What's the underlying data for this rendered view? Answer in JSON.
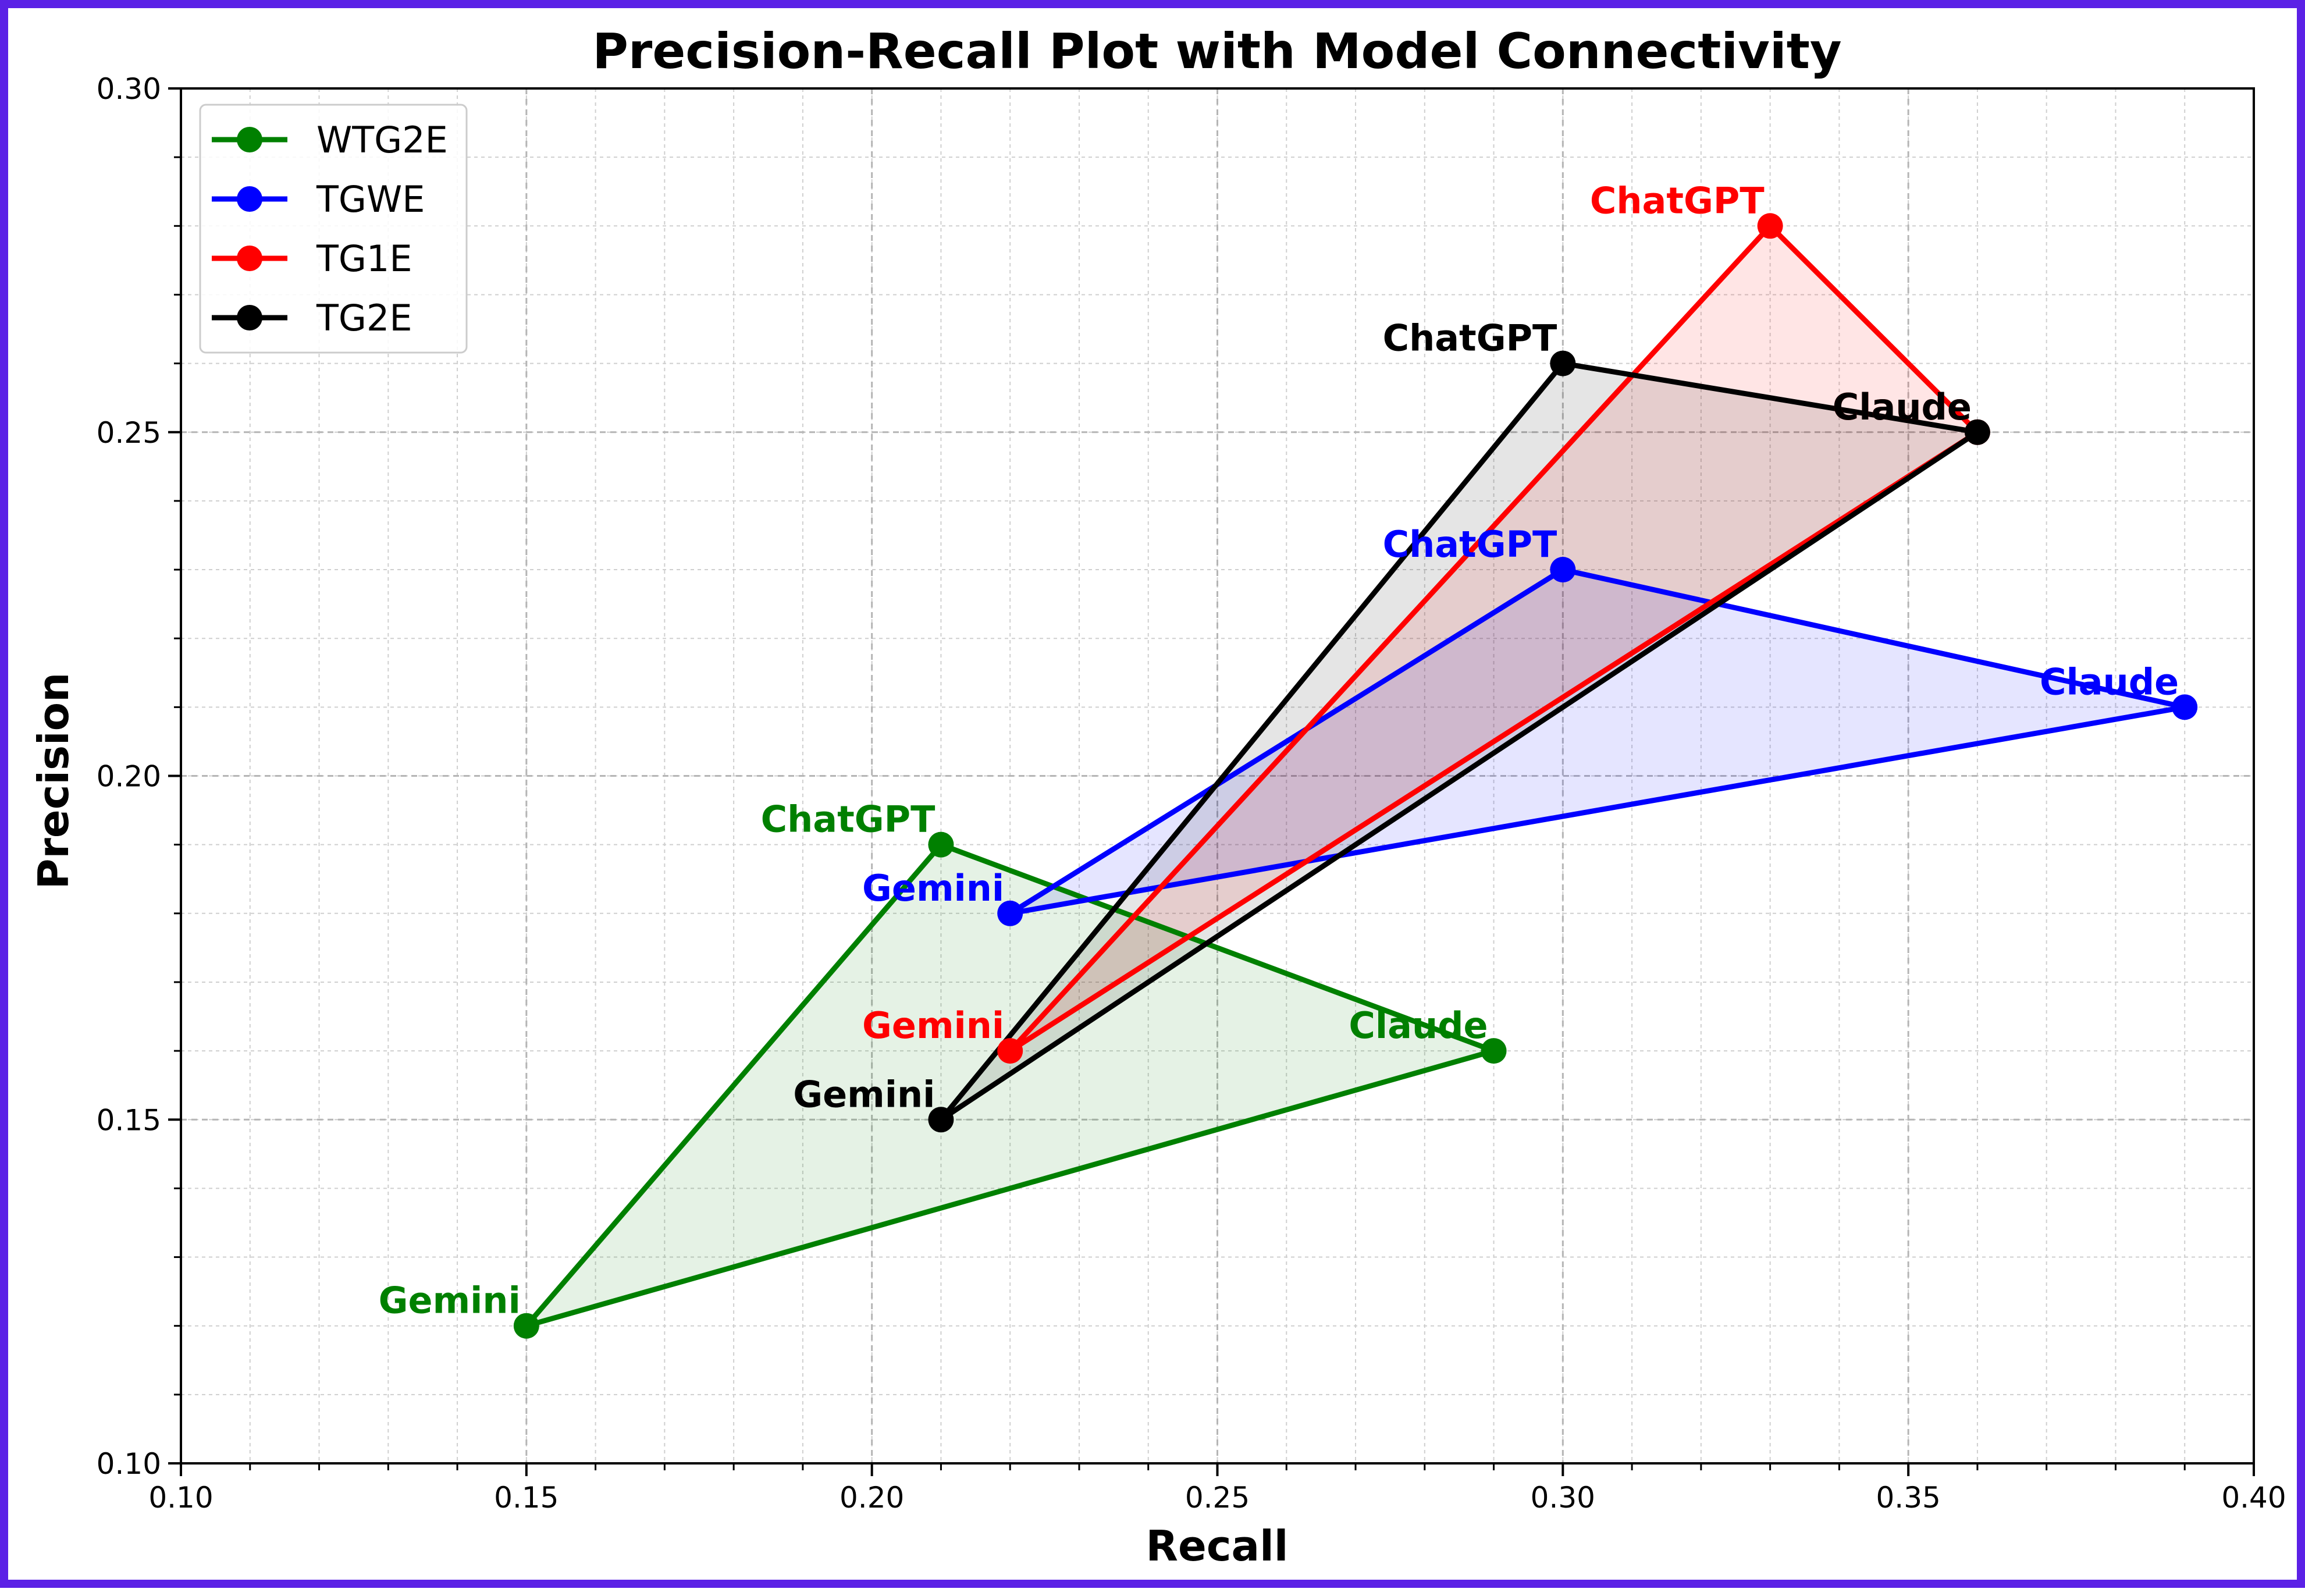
{
  "chart_data": {
    "type": "scatter",
    "title": "Precision-Recall Plot with Model Connectivity",
    "xlabel": "Recall",
    "ylabel": "Precision",
    "xlim": [
      0.1,
      0.4
    ],
    "ylim": [
      0.1,
      0.3
    ],
    "x_ticks": [
      "0.10",
      "0.15",
      "0.20",
      "0.25",
      "0.30",
      "0.35",
      "0.40"
    ],
    "y_ticks": [
      "0.10",
      "0.15",
      "0.20",
      "0.25",
      "0.30"
    ],
    "grid": true,
    "legend_position": "top-left",
    "point_labels": [
      "Gemini",
      "ChatGPT",
      "Claude"
    ],
    "series": [
      {
        "name": "WTG2E",
        "color": "#008000",
        "x": [
          0.15,
          0.21,
          0.29
        ],
        "y": [
          0.12,
          0.19,
          0.16
        ]
      },
      {
        "name": "TGWE",
        "color": "#0000ff",
        "x": [
          0.22,
          0.3,
          0.39
        ],
        "y": [
          0.18,
          0.23,
          0.21
        ]
      },
      {
        "name": "TG1E",
        "color": "#ff0000",
        "x": [
          0.22,
          0.33,
          0.36
        ],
        "y": [
          0.16,
          0.28,
          0.25
        ]
      },
      {
        "name": "TG2E",
        "color": "#000000",
        "x": [
          0.21,
          0.3,
          0.36
        ],
        "y": [
          0.15,
          0.26,
          0.25
        ]
      }
    ]
  }
}
